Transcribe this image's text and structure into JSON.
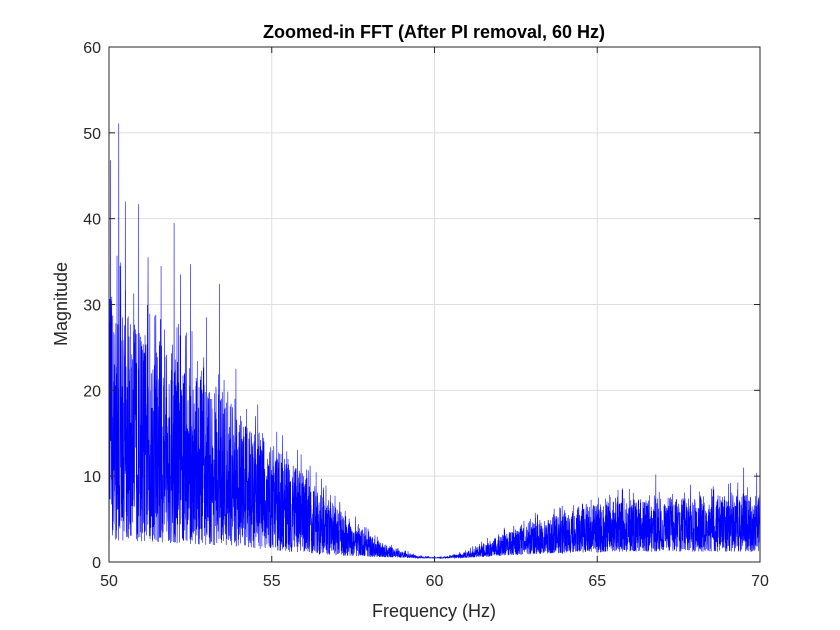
{
  "chart_data": {
    "type": "line",
    "title": "Zoomed-in FFT (After PI removal, 60 Hz)",
    "xlabel": "Frequency (Hz)",
    "ylabel": "Magnitude",
    "xlim": [
      50,
      70
    ],
    "ylim": [
      0,
      60
    ],
    "xticks": [
      "50",
      "55",
      "60",
      "65",
      "70"
    ],
    "yticks": [
      "0",
      "10",
      "20",
      "30",
      "40",
      "50",
      "60"
    ],
    "grid": true,
    "series": [
      {
        "color": "#0000ff",
        "envelope_x": [
          50.0,
          50.5,
          51.0,
          51.5,
          52.0,
          52.5,
          53.0,
          53.5,
          54.0,
          54.5,
          55.0,
          55.5,
          56.0,
          56.5,
          57.0,
          57.5,
          58.0,
          58.5,
          59.0,
          59.5,
          60.0,
          60.5,
          61.0,
          61.5,
          62.0,
          62.5,
          63.0,
          63.5,
          64.0,
          64.5,
          65.0,
          65.5,
          66.0,
          66.5,
          67.0,
          67.5,
          68.0,
          68.5,
          69.0,
          69.5,
          70.0
        ],
        "envelope_y": [
          30,
          28,
          26,
          25,
          23,
          22,
          20,
          18.5,
          17,
          15,
          13,
          11.5,
          10,
          8,
          6,
          4.5,
          3,
          2,
          1.2,
          0.7,
          0.5,
          0.7,
          1.2,
          2,
          3,
          3.8,
          4.5,
          5,
          5.5,
          6,
          6.5,
          6.8,
          7,
          7.1,
          7.2,
          7.3,
          7.4,
          7.5,
          7.5,
          7.5,
          7.5
        ],
        "floor_y": [
          2.5,
          2.5,
          2.4,
          2.3,
          2.2,
          2.1,
          2.0,
          1.9,
          1.8,
          1.6,
          1.4,
          1.2,
          1.0,
          0.9,
          0.8,
          0.7,
          0.6,
          0.55,
          0.5,
          0.45,
          0.45,
          0.45,
          0.5,
          0.6,
          0.7,
          0.8,
          0.9,
          1.0,
          1.0,
          1.1,
          1.1,
          1.2,
          1.2,
          1.2,
          1.2,
          1.2,
          1.2,
          1.2,
          1.2,
          1.2,
          1.2
        ],
        "peaks": [
          {
            "x": 50.05,
            "y": 46.8
          },
          {
            "x": 50.3,
            "y": 51.1
          },
          {
            "x": 50.5,
            "y": 42.0
          },
          {
            "x": 50.9,
            "y": 41.7
          },
          {
            "x": 51.2,
            "y": 35.5
          },
          {
            "x": 51.6,
            "y": 34.5
          },
          {
            "x": 52.0,
            "y": 39.5
          },
          {
            "x": 52.2,
            "y": 33.5
          },
          {
            "x": 52.5,
            "y": 34.7
          },
          {
            "x": 53.0,
            "y": 28.5
          },
          {
            "x": 53.4,
            "y": 32.4
          },
          {
            "x": 53.9,
            "y": 22.5
          },
          {
            "x": 54.5,
            "y": 17.0
          },
          {
            "x": 55.5,
            "y": 12.0
          },
          {
            "x": 66.8,
            "y": 10.2
          },
          {
            "x": 69.5,
            "y": 11.0
          },
          {
            "x": 69.9,
            "y": 10.4
          }
        ]
      }
    ]
  }
}
